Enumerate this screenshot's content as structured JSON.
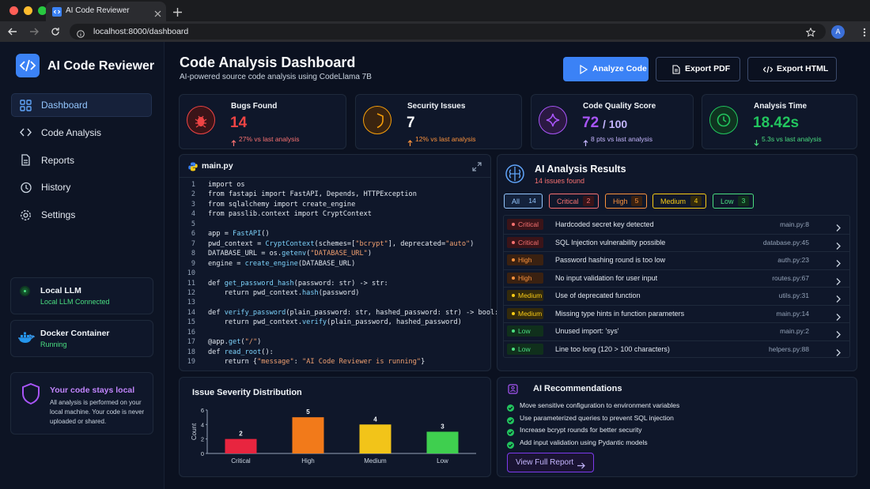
{
  "browser": {
    "tab_title": "AI Code Reviewer",
    "url": "localhost:8000/dashboard",
    "avatar": "A"
  },
  "sidebar": {
    "brand": "AI Code Reviewer",
    "nav": [
      "Dashboard",
      "Code Analysis",
      "Reports",
      "History",
      "Settings"
    ],
    "status": [
      {
        "title": "Local LLM",
        "detail": "Local LLM Connected"
      },
      {
        "title": "Docker Container",
        "detail": "Running"
      }
    ],
    "privacy": {
      "title": "Your code stays local",
      "text": "All analysis is performed on your local machine. Your code is never uploaded or shared."
    }
  },
  "header": {
    "title": "Code Analysis Dashboard",
    "subtitle": "AI-powered source code analysis using CodeLlama 7B",
    "buttons": [
      "Analyze Code",
      "Export PDF",
      "Export HTML"
    ]
  },
  "stats": [
    {
      "label": "Bugs Found",
      "value": "14",
      "delta": "27% vs last analysis"
    },
    {
      "label": "Security Issues",
      "value": "7",
      "delta": "12% vs last analysis"
    },
    {
      "label": "Code Quality Score",
      "value": "72",
      "suffix": "/ 100",
      "delta": "8 pts vs last analysis"
    },
    {
      "label": "Analysis Time",
      "value": "18.42s",
      "delta": "5.3s vs last analysis"
    }
  ],
  "editor": {
    "filename": "main.py",
    "line_numbers": [
      1,
      2,
      3,
      4,
      5,
      6,
      7,
      8,
      9,
      10,
      11,
      12,
      13,
      14,
      15,
      16,
      17,
      18,
      19
    ],
    "lines": [
      "import os",
      "from fastapi import FastAPI, Depends, HTTPException",
      "from sqlalchemy import create_engine",
      "from passlib.context import CryptContext",
      null,
      "app = FastAPI()",
      "pwd_context = CryptContext(schemes=[\"bcrypt\"], deprecated=\"auto\")",
      "DATABASE_URL = os.getenv(\"DATABASE_URL\")",
      "engine = create_engine(DATABASE_URL)",
      null,
      "def get_password_hash(password: str) -> str:",
      "    return pwd_context.hash(password)",
      null,
      "def verify_password(plain_password: str, hashed_password: str) -> bool:",
      "    return pwd_context.verify(plain_password, hashed_password)",
      null,
      "@app.get(\"/\")",
      "def read_root():",
      "    return {\"message\": \"AI Code Reviewer is running\"}"
    ]
  },
  "results": {
    "title": "AI Analysis Results",
    "count": "14 issues found",
    "filters": [
      {
        "label": "All",
        "count": 14
      },
      {
        "label": "Critical",
        "count": 2
      },
      {
        "label": "High",
        "count": 5
      },
      {
        "label": "Medium",
        "count": 4
      },
      {
        "label": "Low",
        "count": 3
      }
    ],
    "issues": [
      {
        "severity": "Critical",
        "message": "Hardcoded secret key detected",
        "location": "main.py:8"
      },
      {
        "severity": "Critical",
        "message": "SQL Injection vulnerability possible",
        "location": "database.py:45"
      },
      {
        "severity": "High",
        "message": "Password hashing round is too low",
        "location": "auth.py:23"
      },
      {
        "severity": "High",
        "message": "No input validation for user input",
        "location": "routes.py:67"
      },
      {
        "severity": "Medium",
        "message": "Use of deprecated function",
        "location": "utils.py:31"
      },
      {
        "severity": "Medium",
        "message": "Missing type hints in function parameters",
        "location": "main.py:14"
      },
      {
        "severity": "Low",
        "message": "Unused import: 'sys'",
        "location": "main.py:2"
      },
      {
        "severity": "Low",
        "message": "Line too long (120 > 100 characters)",
        "location": "helpers.py:88"
      }
    ]
  },
  "recommendations": {
    "title": "AI Recommendations",
    "items": [
      "Move sensitive configuration to environment variables",
      "Use parameterized queries to prevent SQL injection",
      "Increase bcrypt rounds for better security",
      "Add input validation using Pydantic models"
    ],
    "button": "View Full Report"
  },
  "chart_data": {
    "type": "bar",
    "title": "Issue Severity Distribution",
    "y_label": "Count",
    "categories": [
      "Critical",
      "High",
      "Medium",
      "Low"
    ],
    "values": [
      2,
      5,
      4,
      3
    ],
    "colors": [
      "#e8253f",
      "#f27a1a",
      "#f2c419",
      "#3fcf4f"
    ],
    "ylim": [
      0,
      6
    ],
    "yticks": [
      0,
      2,
      4,
      6
    ],
    "grid": false
  }
}
